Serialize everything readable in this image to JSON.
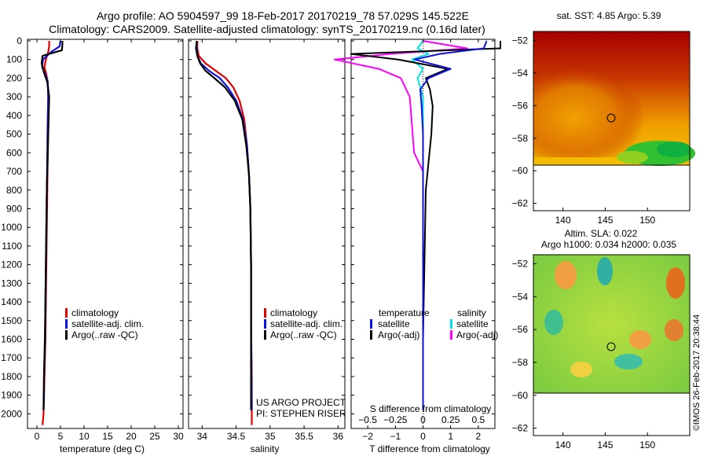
{
  "title": {
    "line1": "Argo profile: AO 5904597_99 18-Feb-2017 20170219_78 57.029S 145.522E",
    "line2": "Climatology: CARS2009. Satellite-adjusted climatology: synTS_20170219.nc (0.16d later)"
  },
  "watermark": "©IMOS 26-Feb-2017 20:38:44",
  "colors": {
    "climatology": "#e00000",
    "satellite": "#1010e0",
    "argo": "#000000",
    "cyan": "#00e0e0",
    "magenta": "#ff00ff"
  },
  "depth_axis": {
    "ticks": [
      0,
      100,
      200,
      300,
      400,
      500,
      600,
      700,
      800,
      900,
      1000,
      1100,
      1200,
      1300,
      1400,
      1500,
      1600,
      1700,
      1800,
      1900,
      2000
    ],
    "labels": [
      "0",
      "100",
      "200",
      "300",
      "400",
      "500",
      "600",
      "700",
      "800",
      "900",
      "1000",
      "1100",
      "1200",
      "1300",
      "1400",
      "1500",
      "1600",
      "1700",
      "1800",
      "1900",
      "2000"
    ]
  },
  "panels": {
    "temperature": {
      "xlabel": "temperature (deg C)",
      "xticks": [
        0,
        5,
        10,
        15,
        20,
        25,
        30
      ],
      "xticklabels": [
        "0",
        "5",
        "10",
        "15",
        "20",
        "25",
        "30"
      ],
      "legend": [
        "climatology",
        "satellite-adj. clim.",
        "Argo(..raw -QC)"
      ]
    },
    "salinity": {
      "xlabel": "salinity",
      "xticks": [
        34,
        34.5,
        35,
        35.5,
        36
      ],
      "xticklabels": [
        "34",
        "34.5",
        "35",
        "35.5",
        "36"
      ],
      "legend": [
        "climatology",
        "satellite-adj. clim.",
        "Argo(..raw -QC)"
      ],
      "note_line1": "US ARGO PROJECT",
      "note_line2": "PI: STEPHEN RISER"
    },
    "difference": {
      "xlabel": "T difference from climatology",
      "xlabel2": "S difference from climatology",
      "t_ticks": [
        -2,
        -1,
        0,
        1,
        2
      ],
      "t_ticklabels": [
        "−2",
        "−1",
        "0",
        "1",
        "2"
      ],
      "s_ticks": [
        -0.5,
        -0.25,
        0,
        0.25,
        0.5
      ],
      "s_ticklabels": [
        "−0.5",
        "−0.25",
        "0",
        "0.25",
        "0.5"
      ],
      "legend_temp_title": "temperature",
      "legend_temp": [
        "satellite",
        "Argo(-adj)"
      ],
      "legend_sal_title": "salinity",
      "legend_sal": [
        "satellite",
        "Argo(-adj)"
      ]
    }
  },
  "maps": {
    "sst": {
      "title": "sat. SST: 4.85 Argo: 5.39"
    },
    "sla": {
      "title_line1": "Altim. SLA: 0.022",
      "title_line2": "Argo h1000: 0.034 h2000: 0.035"
    },
    "yticks": [
      -52,
      -54,
      -56,
      -58,
      -60,
      -62
    ],
    "yticklabels": [
      "−52",
      "−54",
      "−56",
      "−58",
      "−60",
      "−62"
    ],
    "xticks": [
      140,
      145,
      150
    ],
    "xticklabels": [
      "140",
      "145",
      "150"
    ]
  },
  "chart_data": [
    {
      "type": "line",
      "title": "",
      "xlabel": "temperature (deg C)",
      "ylabel": "",
      "xlim": [
        -2,
        31
      ],
      "ylim": [
        2070,
        0
      ],
      "series": [
        {
          "name": "climatology",
          "x": [
            2.6,
            2.6,
            2.4,
            1.9,
            1.6,
            2.0,
            2.3,
            2.4,
            2.4,
            2.3,
            2.2,
            2.1,
            2.0,
            1.9,
            1.8,
            1.7,
            1.6,
            1.5,
            1.4,
            1.3,
            1.2
          ],
          "y": [
            0,
            30,
            60,
            100,
            140,
            180,
            220,
            300,
            400,
            600,
            800,
            1000,
            1200,
            1400,
            1600,
            1700,
            1800,
            1900,
            2000,
            2030,
            2060
          ]
        },
        {
          "name": "satellite-adj. clim.",
          "x": [
            5.0,
            4.8,
            3.0,
            1.3,
            1.1,
            1.8,
            2.3,
            2.4,
            2.3,
            2.2,
            2.1,
            2.0,
            1.9,
            1.8,
            1.7,
            1.6,
            1.5,
            1.5,
            1.4
          ],
          "y": [
            0,
            30,
            60,
            100,
            140,
            180,
            220,
            300,
            400,
            600,
            800,
            1000,
            1200,
            1400,
            1600,
            1700,
            1800,
            1900,
            1980
          ]
        },
        {
          "name": "Argo(..raw -QC)",
          "x": [
            5.4,
            5.4,
            5.3,
            1.2,
            1.0,
            1.5,
            2.2,
            2.6,
            2.5,
            2.3,
            2.1,
            2.0,
            1.9,
            1.8,
            1.7,
            1.6,
            1.5,
            1.4
          ],
          "y": [
            0,
            20,
            50,
            80,
            120,
            170,
            220,
            300,
            400,
            600,
            800,
            1000,
            1200,
            1400,
            1600,
            1700,
            1800,
            1980
          ]
        }
      ]
    },
    {
      "type": "line",
      "title": "",
      "xlabel": "salinity",
      "ylabel": "",
      "xlim": [
        33.8,
        36.1
      ],
      "ylim": [
        2070,
        0
      ],
      "series": [
        {
          "name": "climatology",
          "x": [
            33.93,
            33.93,
            33.95,
            34.05,
            34.2,
            34.35,
            34.46,
            34.55,
            34.62,
            34.66,
            34.69,
            34.71,
            34.72,
            34.72,
            34.73,
            34.73
          ],
          "y": [
            0,
            40,
            80,
            120,
            160,
            200,
            250,
            320,
            420,
            560,
            720,
            900,
            1200,
            1500,
            1800,
            2060
          ]
        },
        {
          "name": "satellite-adj. clim.",
          "x": [
            33.92,
            33.92,
            33.93,
            33.98,
            34.1,
            34.26,
            34.38,
            34.5,
            34.6,
            34.66,
            34.69,
            34.71,
            34.72,
            34.72,
            34.73
          ],
          "y": [
            0,
            40,
            80,
            120,
            160,
            200,
            250,
            320,
            420,
            560,
            720,
            900,
            1200,
            1500,
            1980
          ]
        },
        {
          "name": "Argo(..raw -QC)",
          "x": [
            33.92,
            33.91,
            33.93,
            33.97,
            34.05,
            34.18,
            34.34,
            34.48,
            34.59,
            34.65,
            34.69,
            34.71,
            34.72,
            34.72,
            34.72
          ],
          "y": [
            0,
            40,
            80,
            120,
            160,
            200,
            250,
            320,
            420,
            560,
            720,
            900,
            1200,
            1500,
            1980
          ]
        }
      ]
    },
    {
      "type": "line",
      "title": "",
      "xlabel": "T difference from climatology",
      "ylabel": "",
      "xlim": [
        -2.6,
        2.6
      ],
      "ylim": [
        2070,
        0
      ],
      "series": [
        {
          "name": "temperature satellite",
          "x": [
            2.3,
            2.2,
            0.6,
            -0.3,
            1.0,
            0.2,
            -0.1,
            -0.05,
            0.0,
            0.0,
            0.0,
            0.0,
            0.0
          ],
          "y": [
            0,
            40,
            70,
            100,
            150,
            200,
            260,
            350,
            500,
            800,
            1200,
            1600,
            1980
          ]
        },
        {
          "name": "temperature Argo(-adj)",
          "x": [
            2.8,
            2.8,
            -2.6,
            -0.9,
            0.9,
            0.1,
            0.25,
            0.35,
            0.3,
            0.1,
            0.05,
            0.0,
            0.0
          ],
          "y": [
            0,
            40,
            70,
            100,
            150,
            200,
            260,
            350,
            500,
            800,
            1200,
            1600,
            1980
          ]
        },
        {
          "name": "salinity satellite",
          "x": [
            0.0,
            -0.05,
            0.05,
            -0.1,
            0.0,
            -0.05,
            0.0,
            0.0,
            0.0,
            0.0,
            0.0,
            0.0
          ],
          "y": [
            0,
            40,
            70,
            100,
            150,
            200,
            300,
            500,
            800,
            1200,
            1600,
            1980
          ]
        },
        {
          "name": "salinity Argo(-adj)",
          "x": [
            0.0,
            0.4,
            -0.3,
            -0.8,
            -0.4,
            -0.2,
            -0.12,
            -0.1,
            -0.08,
            0.0
          ],
          "y": [
            0,
            40,
            70,
            100,
            150,
            200,
            300,
            450,
            600,
            700
          ]
        }
      ]
    }
  ]
}
